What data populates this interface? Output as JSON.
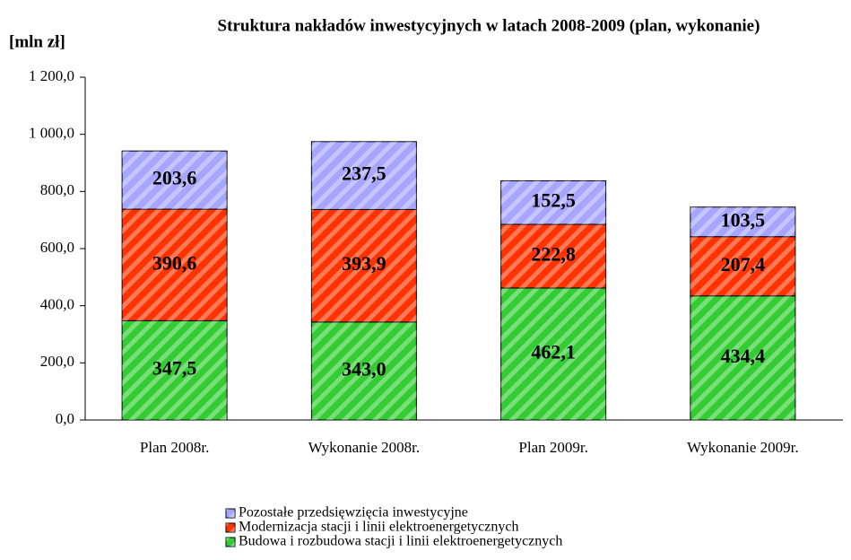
{
  "chart_data": {
    "type": "stacked_bar",
    "title": "Struktura nakładów inwestycyjnych w latach 2008-2009 (plan, wykonanie)",
    "y_label": "[mln zł]",
    "categories": [
      "Plan 2008r.",
      "Wykonanie 2008r.",
      "Plan 2009r.",
      "Wykonanie 2009r."
    ],
    "series": [
      {
        "name": "Budowa i rozbudowa stacji i linii elektroenergetycznych",
        "color": "#33cc33",
        "values": [
          347.5,
          343.0,
          462.1,
          434.4
        ],
        "value_labels": [
          "347,5",
          "343,0",
          "462,1",
          "434,4"
        ]
      },
      {
        "name": "Modernizacja stacji i linii elektroenergetycznych",
        "color": "#ff3300",
        "values": [
          390.6,
          393.9,
          222.8,
          207.4
        ],
        "value_labels": [
          "390,6",
          "393,9",
          "222,8",
          "207,4"
        ]
      },
      {
        "name": "Pozostałe przedsięwzięcia inwestycyjne",
        "color": "#a6a6ff",
        "values": [
          203.6,
          237.5,
          152.5,
          103.5
        ],
        "value_labels": [
          "203,6",
          "237,5",
          "152,5",
          "103,5"
        ]
      }
    ],
    "ylim": [
      0,
      1200
    ],
    "yticks": [
      {
        "value": 0,
        "label": "0,0"
      },
      {
        "value": 200,
        "label": "200,0"
      },
      {
        "value": 400,
        "label": "400,0"
      },
      {
        "value": 600,
        "label": "600,0"
      },
      {
        "value": 800,
        "label": "800,0"
      },
      {
        "value": 1000,
        "label": "1 000,0"
      },
      {
        "value": 1200,
        "label": "1 200,0"
      }
    ],
    "legend": "bottom"
  }
}
